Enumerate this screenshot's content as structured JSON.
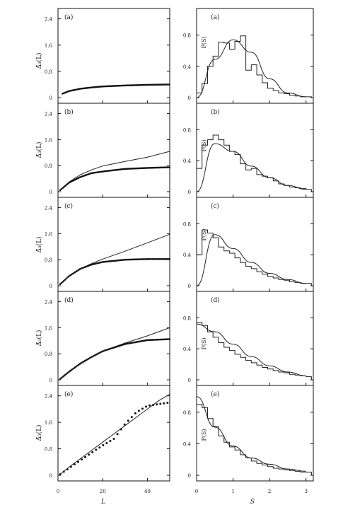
{
  "figure": {
    "left_column": {
      "xlabel": "L",
      "x_ticks": [
        "0",
        "20",
        "40"
      ],
      "xlim": [
        0,
        50
      ]
    },
    "right_column": {
      "xlabel": "S",
      "x_ticks": [
        "0",
        "1",
        "2",
        "3"
      ],
      "xlim": [
        0,
        3.2
      ]
    }
  },
  "chart_data": [
    {
      "type": "scatter",
      "panel_label": "(a)",
      "ylabel": "Δ̄₃(L)",
      "y_ticks": [
        "0",
        "0.8",
        "1.6",
        "2.4"
      ],
      "ylim": [
        0,
        2.5
      ],
      "x": [
        2,
        5,
        10,
        15,
        20,
        30,
        40,
        50
      ],
      "series": [
        {
          "values": [
            0.12,
            0.2,
            0.27,
            0.31,
            0.34,
            0.37,
            0.39,
            0.4
          ]
        }
      ]
    },
    {
      "type": "scatter",
      "panel_label": "(b)",
      "ylabel": "Δ̄₃(L)",
      "y_ticks": [
        "0",
        "0.8",
        "1.6",
        "2.4"
      ],
      "ylim": [
        0,
        2.5
      ],
      "x": [
        1,
        5,
        10,
        15,
        20,
        30,
        40,
        50
      ],
      "series": [
        {
          "values": [
            0.05,
            0.28,
            0.45,
            0.57,
            0.62,
            0.7,
            0.73,
            0.75
          ]
        },
        {
          "values": [
            0.05,
            0.3,
            0.52,
            0.67,
            0.79,
            0.93,
            1.06,
            1.24
          ]
        }
      ]
    },
    {
      "type": "scatter",
      "panel_label": "(c)",
      "ylabel": "Δ̄₃(L)",
      "y_ticks": [
        "0",
        "0.8",
        "1.6",
        "2.4"
      ],
      "ylim": [
        0,
        2.5
      ],
      "x": [
        1,
        5,
        10,
        15,
        20,
        30,
        40,
        50
      ],
      "series": [
        {
          "values": [
            0.05,
            0.3,
            0.52,
            0.65,
            0.73,
            0.8,
            0.82,
            0.82
          ]
        },
        {
          "values": [
            0.05,
            0.3,
            0.52,
            0.68,
            0.82,
            1.06,
            1.32,
            1.58
          ]
        }
      ]
    },
    {
      "type": "scatter",
      "panel_label": "(d)",
      "ylabel": "Δ̄₃(L)",
      "y_ticks": [
        "0",
        "0.8",
        "1.6",
        "2.4"
      ],
      "ylim": [
        0,
        2.5
      ],
      "x": [
        1,
        5,
        10,
        15,
        20,
        30,
        40,
        50
      ],
      "series": [
        {
          "values": [
            0.03,
            0.25,
            0.5,
            0.7,
            0.88,
            1.1,
            1.22,
            1.25
          ]
        },
        {
          "values": [
            0.03,
            0.25,
            0.5,
            0.7,
            0.88,
            1.13,
            1.35,
            1.6
          ]
        }
      ]
    },
    {
      "type": "scatter",
      "panel_label": "(e)",
      "ylabel": "Δ̄₃(L)",
      "y_ticks": [
        "0",
        "0.8",
        "1.6",
        "2.4"
      ],
      "ylim": [
        0,
        2.5
      ],
      "x": [
        1,
        5,
        10,
        15,
        20,
        25,
        30,
        35,
        40,
        45,
        50
      ],
      "series": [
        {
          "values": [
            0.03,
            0.22,
            0.45,
            0.68,
            0.9,
            1.1,
            1.55,
            1.9,
            2.1,
            2.15,
            2.2
          ]
        },
        {
          "values": [
            0.03,
            0.25,
            0.5,
            0.75,
            1.0,
            1.25,
            1.5,
            1.75,
            2.0,
            2.25,
            2.45
          ]
        }
      ]
    },
    {
      "type": "bar",
      "panel_label": "(a)",
      "ylabel": "P(S)",
      "y_ticks": [
        "0",
        "0.4",
        "0.8"
      ],
      "ylim": [
        0,
        1.05
      ],
      "bin_width": 0.15,
      "values": [
        0.06,
        0.18,
        0.4,
        0.53,
        0.71,
        0.7,
        0.62,
        0.72,
        0.79,
        0.35,
        0.42,
        0.29,
        0.19,
        0.12,
        0.09,
        0.06,
        0.05,
        0.03,
        0.02,
        0.01,
        0.01
      ],
      "curve_x": [
        0,
        0.5,
        1.0,
        1.5,
        2.0,
        2.5,
        3.0
      ],
      "curve_y": [
        0.0,
        0.49,
        0.74,
        0.58,
        0.24,
        0.06,
        0.01
      ]
    },
    {
      "type": "bar",
      "panel_label": "(b)",
      "ylabel": "P(S)",
      "y_ticks": [
        "0",
        "0.4",
        "0.8"
      ],
      "ylim": [
        0,
        1.05
      ],
      "bin_width": 0.15,
      "values": [
        0.3,
        0.6,
        0.67,
        0.73,
        0.67,
        0.6,
        0.52,
        0.48,
        0.36,
        0.28,
        0.3,
        0.22,
        0.2,
        0.18,
        0.14,
        0.1,
        0.08,
        0.06,
        0.05,
        0.04,
        0.03
      ],
      "curve_x": [
        0,
        0.5,
        1.0,
        1.5,
        2.0,
        2.5,
        3.0
      ],
      "curve_y": [
        0.0,
        0.62,
        0.52,
        0.33,
        0.18,
        0.08,
        0.03
      ]
    },
    {
      "type": "bar",
      "panel_label": "(c)",
      "ylabel": "P(S)",
      "y_ticks": [
        "0",
        "0.4",
        "0.8"
      ],
      "ylim": [
        0,
        1.05
      ],
      "bin_width": 0.15,
      "values": [
        0.4,
        0.72,
        0.68,
        0.62,
        0.5,
        0.45,
        0.42,
        0.36,
        0.3,
        0.25,
        0.22,
        0.18,
        0.15,
        0.12,
        0.1,
        0.08,
        0.07,
        0.05,
        0.04,
        0.03,
        0.03
      ],
      "curve_x": [
        0,
        0.5,
        1.0,
        1.5,
        2.0,
        2.5,
        3.0
      ],
      "curve_y": [
        0.0,
        0.66,
        0.48,
        0.3,
        0.16,
        0.08,
        0.03
      ]
    },
    {
      "type": "bar",
      "panel_label": "(d)",
      "ylabel": "P(S)",
      "y_ticks": [
        "0",
        "0.4",
        "0.8"
      ],
      "ylim": [
        0,
        1.05
      ],
      "bin_width": 0.15,
      "values": [
        0.74,
        0.7,
        0.62,
        0.55,
        0.48,
        0.42,
        0.38,
        0.33,
        0.29,
        0.25,
        0.22,
        0.19,
        0.16,
        0.14,
        0.12,
        0.1,
        0.09,
        0.07,
        0.06,
        0.05,
        0.04
      ],
      "curve_x": [
        0,
        0.5,
        1.0,
        1.5,
        2.0,
        2.5,
        3.0
      ],
      "curve_y": [
        0.72,
        0.62,
        0.46,
        0.3,
        0.18,
        0.1,
        0.05
      ]
    },
    {
      "type": "bar",
      "panel_label": "(e)",
      "ylabel": "P(S)",
      "y_ticks": [
        "0",
        "0.4",
        "0.8"
      ],
      "ylim": [
        0,
        1.05
      ],
      "bin_width": 0.15,
      "values": [
        0.9,
        0.86,
        0.72,
        0.62,
        0.5,
        0.42,
        0.36,
        0.32,
        0.26,
        0.22,
        0.18,
        0.15,
        0.13,
        0.11,
        0.09,
        0.08,
        0.07,
        0.06,
        0.05,
        0.04,
        0.04
      ],
      "curve_x": [
        0,
        0.5,
        1.0,
        1.5,
        2.0,
        2.5,
        3.0
      ],
      "curve_y": [
        1.0,
        0.61,
        0.37,
        0.22,
        0.14,
        0.08,
        0.05
      ]
    }
  ]
}
